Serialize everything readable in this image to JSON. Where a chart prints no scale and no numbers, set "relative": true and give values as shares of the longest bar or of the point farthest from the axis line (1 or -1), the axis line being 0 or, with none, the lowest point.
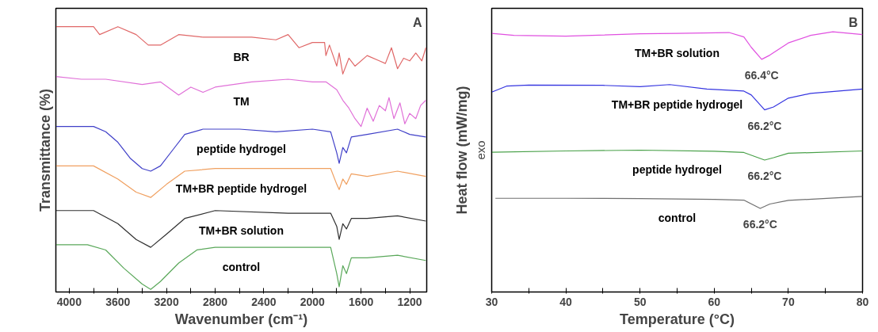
{
  "chart_data": [
    {
      "type": "line",
      "xlabel": "Wavenumber (cm⁻¹)",
      "ylabel": "Transmittance (%)",
      "relative": true,
      "grid": false,
      "xlim": [
        4110,
        1060
      ],
      "xticks": [
        4000,
        {
          "value": 3800,
          "label": null
        },
        3600,
        {
          "value": 3400,
          "label": null
        },
        3200,
        {
          "value": 3000,
          "label": null
        },
        2800,
        {
          "value": 2600,
          "label": null
        },
        2400,
        {
          "value": 2200,
          "label": null
        },
        2000,
        {
          "value": 1800,
          "label": null
        },
        1600,
        {
          "value": 1400,
          "label": null
        },
        1200
      ],
      "annotations": [
        "A"
      ],
      "series": [
        {
          "name": "BR",
          "color": "#e06868",
          "x": [
            4110,
            4000,
            3800,
            3750,
            3600,
            3450,
            3350,
            3250,
            3100,
            2900,
            2500,
            2300,
            2200,
            2111,
            2000,
            1900,
            1889,
            1860,
            1800,
            1780,
            1750,
            1700,
            1650,
            1550,
            1450,
            1400,
            1350,
            1300,
            1250,
            1200,
            1150,
            1100,
            1067
          ],
          "values": [
            1.0,
            1.0,
            1.0,
            0.97,
            1.0,
            0.97,
            0.93,
            0.93,
            0.97,
            0.96,
            0.96,
            0.95,
            0.97,
            0.92,
            0.94,
            0.94,
            0.89,
            0.93,
            0.85,
            0.9,
            0.82,
            0.88,
            0.85,
            0.89,
            0.87,
            0.86,
            0.92,
            0.84,
            0.88,
            0.87,
            0.9,
            0.87,
            0.92
          ]
        },
        {
          "name": "TM",
          "color": "#e070d8",
          "x": [
            4110,
            3900,
            3700,
            3400,
            3250,
            3100,
            3000,
            2900,
            2800,
            2500,
            2200,
            2000,
            1889,
            1800,
            1750,
            1700,
            1650,
            1600,
            1550,
            1500,
            1450,
            1400,
            1370,
            1330,
            1280,
            1240,
            1200,
            1150,
            1110,
            1067
          ],
          "values": [
            0.81,
            0.8,
            0.8,
            0.78,
            0.79,
            0.74,
            0.77,
            0.75,
            0.77,
            0.79,
            0.8,
            0.79,
            0.79,
            0.76,
            0.72,
            0.69,
            0.65,
            0.62,
            0.69,
            0.64,
            0.7,
            0.68,
            0.73,
            0.65,
            0.71,
            0.63,
            0.67,
            0.65,
            0.7,
            0.72
          ]
        },
        {
          "name": "peptide hydrogel",
          "color": "#4040c8",
          "x": [
            4110,
            3800,
            3700,
            3600,
            3500,
            3400,
            3330,
            3250,
            3150,
            3050,
            2900,
            2600,
            2300,
            2000,
            1850,
            1800,
            1780,
            1750,
            1720,
            1680,
            1550,
            1300,
            1200,
            1067
          ],
          "values": [
            0.62,
            0.62,
            0.6,
            0.56,
            0.5,
            0.46,
            0.45,
            0.47,
            0.53,
            0.59,
            0.61,
            0.61,
            0.6,
            0.61,
            0.6,
            0.52,
            0.48,
            0.54,
            0.52,
            0.58,
            0.59,
            0.61,
            0.59,
            0.58
          ]
        },
        {
          "name": "TM+BR peptide hydrogel",
          "color": "#f0a060",
          "x": [
            4110,
            3800,
            3600,
            3450,
            3330,
            3200,
            3050,
            2800,
            2300,
            1850,
            1800,
            1780,
            1750,
            1720,
            1680,
            1550,
            1300,
            1067
          ],
          "values": [
            0.47,
            0.47,
            0.42,
            0.37,
            0.35,
            0.4,
            0.45,
            0.46,
            0.46,
            0.46,
            0.4,
            0.38,
            0.42,
            0.4,
            0.44,
            0.43,
            0.45,
            0.43
          ]
        },
        {
          "name": "TM+BR solution",
          "color": "#303030",
          "x": [
            4110,
            3800,
            3600,
            3450,
            3330,
            3200,
            3050,
            2800,
            2200,
            1850,
            1800,
            1780,
            1750,
            1720,
            1680,
            1550,
            1300,
            1067
          ],
          "values": [
            0.3,
            0.3,
            0.25,
            0.19,
            0.16,
            0.21,
            0.27,
            0.3,
            0.29,
            0.29,
            0.24,
            0.19,
            0.25,
            0.23,
            0.27,
            0.27,
            0.28,
            0.26
          ]
        },
        {
          "name": "control",
          "color": "#5aa85a",
          "x": [
            4110,
            3850,
            3700,
            3550,
            3400,
            3330,
            3250,
            3100,
            2950,
            2800,
            2200,
            1850,
            1800,
            1780,
            1750,
            1720,
            1680,
            1550,
            1300,
            1067
          ],
          "values": [
            0.17,
            0.17,
            0.15,
            0.08,
            0.02,
            0.0,
            0.03,
            0.1,
            0.15,
            0.16,
            0.16,
            0.16,
            0.06,
            0.01,
            0.09,
            0.06,
            0.12,
            0.12,
            0.13,
            0.11
          ]
        }
      ]
    },
    {
      "type": "line",
      "xlabel": "Temperature (°C)",
      "ylabel": "Heat flow (mW/mg)",
      "relative": true,
      "grid": false,
      "xlim": [
        30,
        80
      ],
      "xticks": [
        30,
        {
          "value": 35,
          "label": null
        },
        40,
        {
          "value": 45,
          "label": null
        },
        50,
        {
          "value": 55,
          "label": null
        },
        60,
        {
          "value": 65,
          "label": null
        },
        70,
        {
          "value": 75,
          "label": null
        },
        80
      ],
      "annotations": [
        "B",
        "exo",
        "66.4°C",
        "66.2°C",
        "66.2°C",
        "66.2°C"
      ],
      "series": [
        {
          "name": "TM+BR solution",
          "color": "#e050e0",
          "x": [
            30,
            33,
            40,
            50,
            55,
            62,
            64,
            65,
            66.4,
            67.5,
            70,
            73,
            76,
            80
          ],
          "values": [
            0.994,
            0.986,
            0.983,
            0.992,
            0.994,
            0.997,
            0.98,
            0.94,
            0.894,
            0.91,
            0.957,
            0.986,
            1.0,
            0.989
          ]
        },
        {
          "name": "TM+BR peptide hydrogel",
          "color": "#3535e0",
          "x": [
            30,
            32,
            35,
            45,
            50,
            54,
            59,
            64,
            65,
            66.8,
            68,
            70,
            73,
            80
          ],
          "values": [
            0.768,
            0.791,
            0.795,
            0.794,
            0.789,
            0.797,
            0.78,
            0.772,
            0.757,
            0.7,
            0.711,
            0.745,
            0.763,
            0.78
          ]
        },
        {
          "name": "peptide hydrogel",
          "color": "#48a048",
          "x": [
            30,
            40,
            50,
            60,
            64,
            66.8,
            68,
            70,
            80
          ],
          "values": [
            0.537,
            0.542,
            0.545,
            0.541,
            0.536,
            0.507,
            0.516,
            0.533,
            0.542
          ]
        },
        {
          "name": "control",
          "color": "#707070",
          "x": [
            30.5,
            40,
            50,
            60,
            64,
            66.2,
            67.5,
            70,
            80
          ],
          "values": [
            0.36,
            0.36,
            0.359,
            0.356,
            0.353,
            0.321,
            0.338,
            0.352,
            0.367
          ]
        }
      ]
    }
  ]
}
